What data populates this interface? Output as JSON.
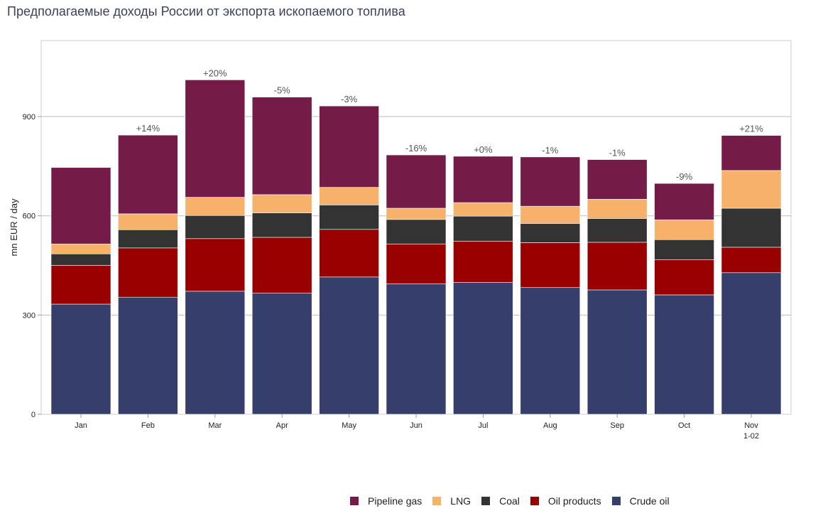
{
  "title": "Предполагаемые доходы России от экспорта ископаемого топлива",
  "chart_data": {
    "type": "bar",
    "stacked": true,
    "ylabel": "mn EUR / day",
    "ylim": [
      0,
      1130
    ],
    "yticks": [
      0,
      300,
      600,
      900
    ],
    "grid": true,
    "legend_position": "bottom",
    "categories": [
      "Jan",
      "Feb",
      "Mar",
      "Apr",
      "May",
      "Jun",
      "Jul",
      "Aug",
      "Sep",
      "Oct",
      "Nov 1-02"
    ],
    "change_labels": [
      "",
      "+14%",
      "+20%",
      "-5%",
      "-3%",
      "-16%",
      "+0%",
      "-1%",
      "-1%",
      "-9%",
      "+21%"
    ],
    "series": [
      {
        "name": "Crude oil",
        "color": "#363f6b",
        "values": [
          333,
          354,
          372,
          366,
          415,
          394,
          399,
          383,
          376,
          361,
          428
        ]
      },
      {
        "name": "Oil products",
        "color": "#990000",
        "values": [
          117,
          149,
          159,
          169,
          144,
          121,
          124,
          136,
          144,
          106,
          77
        ]
      },
      {
        "name": "Coal",
        "color": "#333333",
        "values": [
          35,
          55,
          70,
          74,
          74,
          74,
          76,
          58,
          72,
          61,
          118
        ]
      },
      {
        "name": "LNG",
        "color": "#f6b26b",
        "values": [
          30,
          48,
          55,
          55,
          53,
          34,
          41,
          52,
          58,
          60,
          114
        ]
      },
      {
        "name": "Pipeline gas",
        "color": "#741b47",
        "values": [
          231,
          238,
          355,
          295,
          246,
          161,
          140,
          149,
          120,
          110,
          106
        ]
      }
    ],
    "legend_order": [
      "Pipeline gas",
      "LNG",
      "Coal",
      "Oil products",
      "Crude oil"
    ]
  }
}
